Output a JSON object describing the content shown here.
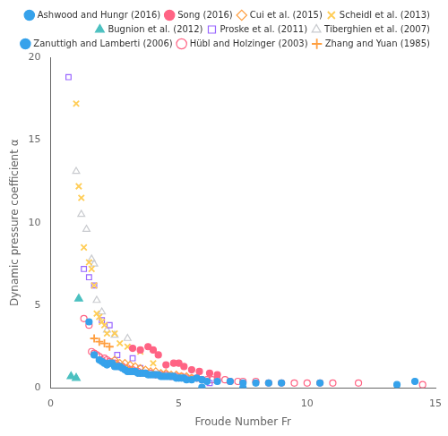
{
  "chart_data": {
    "type": "scatter",
    "xlabel": "Froude Number Fr",
    "ylabel": "Dynamic pressure coefficient α",
    "xlim": [
      0,
      15
    ],
    "ylim": [
      0,
      20
    ],
    "xticks": [
      0,
      5,
      10,
      15
    ],
    "yticks": [
      0,
      5,
      10,
      15,
      20
    ],
    "grid": false,
    "legend": "upper right",
    "series": [
      {
        "name": "Ashwood and Hungr (2016)",
        "marker": "circle",
        "color": "#36a2eb",
        "x": [
          1.5,
          1.7,
          1.9,
          2.0,
          2.1,
          2.2,
          2.3,
          2.4,
          2.5,
          2.6,
          2.7,
          2.8,
          2.9,
          3.0,
          3.1,
          3.2,
          3.3,
          3.4,
          3.5,
          3.6,
          3.7,
          3.8,
          3.9,
          4.0,
          4.1,
          4.2,
          4.3,
          4.4,
          4.5,
          4.6,
          4.7,
          4.8,
          4.9,
          5.0,
          5.1,
          5.2,
          5.3,
          5.5,
          5.7,
          5.9,
          6.1,
          6.5,
          7.0,
          7.5,
          8.0,
          8.5,
          9.0,
          10.5,
          13.5,
          14.2
        ],
        "values": [
          4.0,
          2.0,
          1.7,
          1.6,
          1.5,
          1.4,
          1.5,
          1.5,
          1.3,
          1.3,
          1.3,
          1.2,
          1.1,
          1.0,
          1.0,
          1.0,
          1.0,
          0.9,
          0.9,
          0.9,
          0.9,
          0.8,
          0.8,
          0.8,
          0.8,
          0.8,
          0.7,
          0.7,
          0.7,
          0.7,
          0.7,
          0.7,
          0.6,
          0.6,
          0.6,
          0.6,
          0.5,
          0.5,
          0.6,
          0.5,
          0.4,
          0.4,
          0.4,
          0.3,
          0.3,
          0.3,
          0.3,
          0.3,
          0.2,
          0.4
        ]
      },
      {
        "name": "Song (2016)",
        "marker": "circle",
        "color": "#ff6384",
        "x": [
          3.2,
          3.5,
          3.8,
          4.0,
          4.2,
          4.5,
          4.8,
          5.0,
          5.2,
          5.5,
          5.8,
          6.2,
          6.5
        ],
        "values": [
          2.4,
          2.3,
          2.5,
          2.3,
          2.0,
          1.4,
          1.5,
          1.5,
          1.3,
          1.1,
          1.0,
          0.9,
          0.8
        ]
      },
      {
        "name": "Cui et al. (2015)",
        "marker": "diamond-open",
        "color": "#ff9f40",
        "x": [
          2.5,
          2.7,
          2.9,
          3.1,
          3.3,
          3.5,
          3.7,
          3.9,
          4.1,
          4.3,
          4.5,
          4.7,
          4.9,
          5.1,
          5.3,
          5.5
        ],
        "values": [
          1.7,
          1.5,
          1.5,
          1.4,
          1.3,
          1.2,
          1.1,
          1.0,
          1.0,
          0.9,
          0.9,
          0.8,
          0.8,
          0.7,
          0.7,
          0.6
        ]
      },
      {
        "name": "Scheidl et al. (2013)",
        "marker": "x",
        "color": "#ffcd56",
        "x": [
          1.0,
          1.1,
          1.2,
          1.3,
          1.5,
          1.6,
          1.7,
          1.8,
          1.9,
          2.0,
          2.1,
          2.2,
          2.5,
          2.7,
          3.0,
          3.5,
          4.0
        ],
        "values": [
          17.2,
          12.2,
          11.5,
          8.5,
          7.6,
          7.2,
          6.2,
          4.5,
          4.3,
          4.0,
          3.8,
          3.3,
          3.3,
          2.7,
          2.5,
          2.2,
          1.5
        ]
      },
      {
        "name": "Bugnion et al. (2012)",
        "marker": "triangle",
        "color": "#4bc0c0",
        "x": [
          0.8,
          1.0,
          1.1
        ],
        "values": [
          0.7,
          0.6,
          5.4
        ]
      },
      {
        "name": "Proske et al. (2011)",
        "marker": "square-open",
        "color": "#9966ff",
        "x": [
          0.7,
          1.3,
          1.5,
          1.7,
          2.0,
          2.3,
          2.6,
          3.2,
          3.5,
          6.2
        ],
        "values": [
          18.8,
          7.2,
          6.7,
          6.2,
          4.1,
          3.8,
          2.0,
          1.8,
          1.2,
          0.3
        ]
      },
      {
        "name": "Tiberghien et al. (2007)",
        "marker": "triangle-open",
        "color": "#c9cbcf",
        "x": [
          1.0,
          1.2,
          1.4,
          1.6,
          1.7,
          1.8,
          2.0,
          2.2,
          2.5,
          3.0
        ],
        "values": [
          13.1,
          10.5,
          9.6,
          7.8,
          7.5,
          5.3,
          4.6,
          3.5,
          3.2,
          3.0
        ]
      },
      {
        "name": "Zanuttigh and Lamberti (2006)",
        "marker": "circle",
        "color": "#36a2eb",
        "x": [
          5.9,
          7.5
        ],
        "values": [
          0.05,
          0.02
        ]
      },
      {
        "name": "Hübl and Holzinger (2003)",
        "marker": "circle-open",
        "color": "#ff6384",
        "x": [
          1.3,
          1.5,
          1.6,
          1.7,
          1.8,
          1.9,
          2.0,
          2.1,
          2.2,
          2.3,
          2.4,
          2.5,
          2.6,
          2.7,
          2.8,
          2.9,
          3.0,
          3.1,
          3.2,
          3.3,
          3.4,
          3.5,
          3.7,
          3.9,
          4.1,
          4.3,
          4.5,
          4.7,
          4.9,
          5.1,
          5.3,
          5.5,
          5.7,
          5.9,
          6.1,
          6.3,
          6.5,
          6.8,
          7.0,
          7.3,
          7.5,
          8.0,
          8.5,
          9.0,
          9.5,
          10.0,
          10.5,
          11.0,
          12.0,
          14.5
        ],
        "values": [
          4.2,
          3.8,
          2.2,
          2.1,
          2.0,
          1.9,
          1.7,
          1.8,
          1.7,
          1.6,
          1.5,
          1.5,
          1.4,
          1.3,
          1.3,
          1.2,
          1.2,
          1.1,
          1.1,
          1.0,
          1.0,
          0.9,
          0.9,
          0.9,
          0.8,
          0.8,
          0.8,
          0.7,
          0.7,
          0.7,
          0.6,
          0.6,
          0.6,
          0.5,
          0.5,
          0.5,
          0.5,
          0.5,
          0.4,
          0.4,
          0.4,
          0.4,
          0.3,
          0.3,
          0.3,
          0.3,
          0.3,
          0.3,
          0.3,
          0.2
        ]
      },
      {
        "name": "Zhang and Yuan (1985)",
        "marker": "plus",
        "color": "#ff9f40",
        "x": [
          1.7,
          1.9,
          2.1,
          2.3
        ],
        "values": [
          3.0,
          2.8,
          2.7,
          2.5
        ]
      }
    ]
  }
}
